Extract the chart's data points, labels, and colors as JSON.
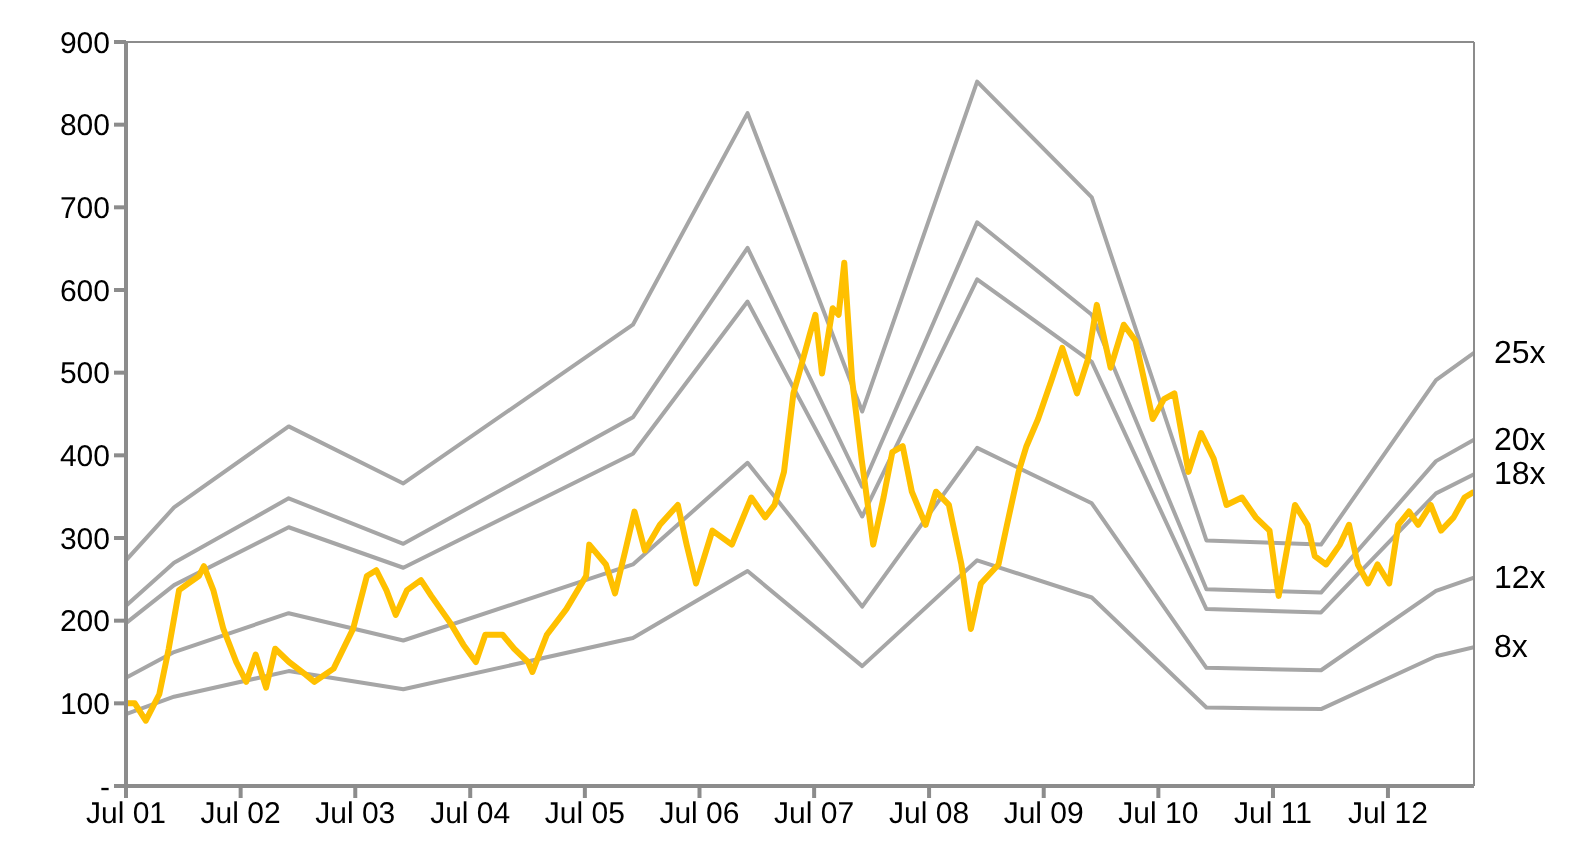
{
  "chart_data": {
    "type": "line",
    "xlim": [
      "2001-07",
      "2013-04"
    ],
    "xticks": [
      {
        "value": "2001-07",
        "label": "Jul 01"
      },
      {
        "value": "2002-07",
        "label": "Jul 02"
      },
      {
        "value": "2003-07",
        "label": "Jul 03"
      },
      {
        "value": "2004-07",
        "label": "Jul 04"
      },
      {
        "value": "2005-07",
        "label": "Jul 05"
      },
      {
        "value": "2006-07",
        "label": "Jul 06"
      },
      {
        "value": "2007-07",
        "label": "Jul 07"
      },
      {
        "value": "2008-07",
        "label": "Jul 08"
      },
      {
        "value": "2009-07",
        "label": "Jul 09"
      },
      {
        "value": "2010-07",
        "label": "Jul 10"
      },
      {
        "value": "2011-07",
        "label": "Jul 11"
      },
      {
        "value": "2012-07",
        "label": "Jul 12"
      }
    ],
    "ylim": [
      0,
      900
    ],
    "yticks": [
      {
        "value": 0,
        "label": "-"
      },
      100,
      200,
      300,
      400,
      500,
      600,
      700,
      800,
      900
    ],
    "grid": false,
    "legend": false,
    "marker": "none",
    "line_style": "solid",
    "series": [
      {
        "name": "25x",
        "color": "#a6a6a6",
        "x": [
          "2001-07",
          "2001-12",
          "2002-12",
          "2003-12",
          "2005-12",
          "2006-12",
          "2007-12",
          "2008-12",
          "2009-12",
          "2010-12",
          "2011-12",
          "2012-12",
          "2013-04"
        ],
        "values": [
          273,
          337,
          435,
          366,
          558,
          814,
          453,
          852,
          712,
          297,
          292,
          491,
          524
        ]
      },
      {
        "name": "20x",
        "color": "#a6a6a6",
        "x": [
          "2001-07",
          "2001-12",
          "2002-12",
          "2003-12",
          "2005-12",
          "2006-12",
          "2007-12",
          "2008-12",
          "2009-12",
          "2010-12",
          "2011-12",
          "2012-12",
          "2013-04"
        ],
        "values": [
          218,
          270,
          348,
          293,
          446,
          651,
          362,
          682,
          570,
          238,
          234,
          393,
          419
        ]
      },
      {
        "name": "18x",
        "color": "#a6a6a6",
        "x": [
          "2001-07",
          "2001-12",
          "2002-12",
          "2003-12",
          "2005-12",
          "2006-12",
          "2007-12",
          "2008-12",
          "2009-12",
          "2010-12",
          "2011-12",
          "2012-12",
          "2013-04"
        ],
        "values": [
          197,
          243,
          313,
          264,
          402,
          586,
          326,
          613,
          513,
          214,
          210,
          354,
          377
        ]
      },
      {
        "name": "12x",
        "color": "#a6a6a6",
        "x": [
          "2001-07",
          "2001-12",
          "2002-12",
          "2003-12",
          "2005-12",
          "2006-12",
          "2007-12",
          "2008-12",
          "2009-12",
          "2010-12",
          "2011-12",
          "2012-12",
          "2013-04"
        ],
        "values": [
          131,
          162,
          209,
          176,
          268,
          391,
          217,
          409,
          342,
          143,
          140,
          236,
          252
        ]
      },
      {
        "name": "8x",
        "color": "#a6a6a6",
        "x": [
          "2001-07",
          "2001-12",
          "2002-12",
          "2003-12",
          "2005-12",
          "2006-12",
          "2007-12",
          "2008-12",
          "2009-12",
          "2010-12",
          "2011-12",
          "2012-12",
          "2013-04"
        ],
        "values": [
          87,
          108,
          139,
          117,
          179,
          260,
          145,
          273,
          228,
          95,
          93,
          157,
          168
        ]
      },
      {
        "color": "#ffc000",
        "x": [
          "2001-07-01",
          "2001-07-29",
          "2001-09-02",
          "2001-10-15",
          "2001-11-14",
          "2001-12-17",
          "2002-01-15",
          "2002-02-18",
          "2002-03-06",
          "2002-04-05",
          "2002-05-07",
          "2002-06-17",
          "2002-07-19",
          "2002-08-18",
          "2002-09-20",
          "2002-10-19",
          "2002-12-02",
          "2003-01-23",
          "2003-02-21",
          "2003-04-23",
          "2003-06-24",
          "2003-08-07",
          "2003-09-06",
          "2003-10-08",
          "2003-11-07",
          "2003-12-13",
          "2004-01-26",
          "2004-02-28",
          "2004-04-29",
          "2004-06-09",
          "2004-07-19",
          "2004-08-18",
          "2004-10-12",
          "2004-11-18",
          "2005-01-01",
          "2005-01-15",
          "2005-03-02",
          "2005-05-03",
          "2005-07-05",
          "2005-07-15",
          "2005-09-06",
          "2005-10-05",
          "2005-11-07",
          "2005-12-06",
          "2006-01-08",
          "2006-02-25",
          "2006-04-23",
          "2006-05-21",
          "2006-06-20",
          "2006-08-11",
          "2006-10-12",
          "2006-12-13",
          "2007-01-26",
          "2007-02-25",
          "2007-03-27",
          "2007-04-26",
          "2007-05-14",
          "2007-06-17",
          "2007-07-05",
          "2007-07-26",
          "2007-08-29",
          "2007-09-17",
          "2007-10-05",
          "2007-10-30",
          "2007-11-29",
          "2008-01-05",
          "2008-02-07",
          "2008-03-06",
          "2008-04-08",
          "2008-05-07",
          "2008-06-20",
          "2008-07-23",
          "2008-09-02",
          "2008-10-12",
          "2008-11-11",
          "2008-12-13",
          "2009-02-07",
          "2009-03-06",
          "2009-04-12",
          "2009-05-07",
          "2009-06-13",
          "2009-07-26",
          "2009-08-29",
          "2009-10-15",
          "2009-11-18",
          "2009-12-17",
          "2010-01-30",
          "2010-03-13",
          "2010-04-19",
          "2010-06-13",
          "2010-07-19",
          "2010-08-21",
          "2010-10-05",
          "2010-11-14",
          "2010-12-24",
          "2011-02-03",
          "2011-03-24",
          "2011-05-07",
          "2011-06-20",
          "2011-07-19",
          "2011-09-09",
          "2011-10-19",
          "2011-11-11",
          "2011-12-17",
          "2012-01-30",
          "2012-02-28",
          "2012-03-27",
          "2012-04-29",
          "2012-05-29",
          "2012-07-05",
          "2012-08-03",
          "2012-09-06",
          "2012-10-05",
          "2012-11-14",
          "2012-12-17",
          "2013-01-26",
          "2013-03-02",
          "2013-04-01"
        ],
        "values": [
          100,
          100,
          79,
          111,
          166,
          237,
          245,
          254,
          266,
          237,
          190,
          150,
          126,
          159,
          119,
          166,
          150,
          135,
          126,
          142,
          190,
          254,
          261,
          237,
          207,
          237,
          249,
          230,
          197,
          171,
          150,
          183,
          183,
          166,
          150,
          138,
          183,
          214,
          254,
          292,
          268,
          233,
          285,
          332,
          285,
          316,
          340,
          292,
          245,
          309,
          292,
          349,
          325,
          340,
          380,
          475,
          499,
          546,
          570,
          499,
          578,
          570,
          633,
          491,
          396,
          292,
          349,
          404,
          411,
          356,
          316,
          356,
          340,
          268,
          190,
          245,
          268,
          316,
          380,
          411,
          444,
          491,
          530,
          475,
          515,
          582,
          506,
          558,
          539,
          444,
          468,
          475,
          380,
          427,
          396,
          340,
          349,
          325,
          309,
          230,
          340,
          316,
          278,
          268,
          292,
          316,
          268,
          245,
          268,
          245,
          316,
          332,
          316,
          340,
          309,
          325,
          349,
          356
        ]
      }
    ]
  }
}
